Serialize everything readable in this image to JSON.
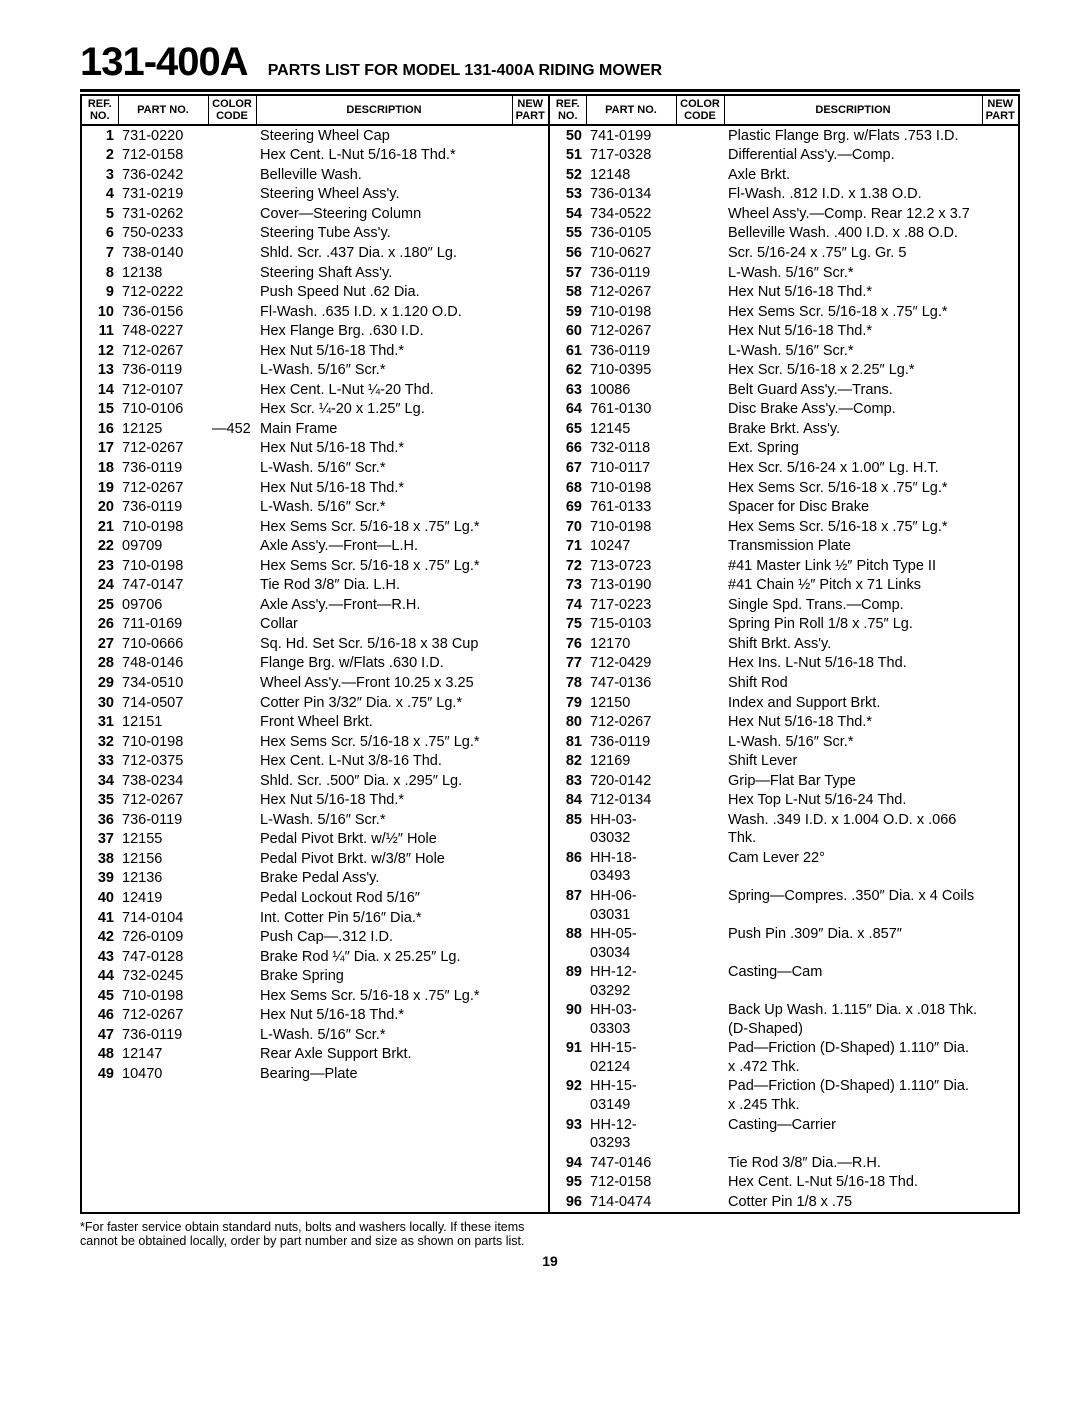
{
  "header": {
    "model": "131-400A",
    "title": "PARTS LIST FOR MODEL 131-400A RIDING MOWER"
  },
  "columns": {
    "ref": "REF.\nNO.",
    "part": "PART\nNO.",
    "color": "COLOR\nCODE",
    "desc": "DESCRIPTION",
    "new": "NEW\nPART"
  },
  "footnote": "*For faster service obtain standard nuts, bolts and washers locally. If these items cannot be obtained locally, order by part number and size as shown on parts list.",
  "pageNumber": "19",
  "left": [
    {
      "ref": "1",
      "part": "731-0220",
      "color": "",
      "desc": "Steering Wheel Cap"
    },
    {
      "ref": "2",
      "part": "712-0158",
      "color": "",
      "desc": "Hex Cent. L-Nut 5/16-18 Thd.*"
    },
    {
      "ref": "3",
      "part": "736-0242",
      "color": "",
      "desc": "Belleville Wash."
    },
    {
      "ref": "4",
      "part": "731-0219",
      "color": "",
      "desc": "Steering Wheel Ass'y."
    },
    {
      "ref": "5",
      "part": "731-0262",
      "color": "",
      "desc": "Cover—Steering Column"
    },
    {
      "ref": "6",
      "part": "750-0233",
      "color": "",
      "desc": "Steering Tube Ass'y."
    },
    {
      "ref": "7",
      "part": "738-0140",
      "color": "",
      "desc": "Shld. Scr. .437 Dia. x .180″ Lg."
    },
    {
      "ref": "8",
      "part": "12138",
      "color": "",
      "desc": "Steering Shaft Ass'y."
    },
    {
      "ref": "9",
      "part": "712-0222",
      "color": "",
      "desc": "Push Speed Nut .62 Dia."
    },
    {
      "ref": "10",
      "part": "736-0156",
      "color": "",
      "desc": "Fl-Wash. .635 I.D. x 1.120 O.D."
    },
    {
      "ref": "11",
      "part": "748-0227",
      "color": "",
      "desc": "Hex Flange Brg. .630 I.D."
    },
    {
      "ref": "12",
      "part": "712-0267",
      "color": "",
      "desc": "Hex Nut 5/16-18 Thd.*"
    },
    {
      "ref": "13",
      "part": "736-0119",
      "color": "",
      "desc": "L-Wash. 5/16″ Scr.*"
    },
    {
      "ref": "14",
      "part": "712-0107",
      "color": "",
      "desc": "Hex Cent. L-Nut ¼-20 Thd."
    },
    {
      "ref": "15",
      "part": "710-0106",
      "color": "",
      "desc": "Hex Scr. ¼-20 x 1.25″ Lg."
    },
    {
      "ref": "16",
      "part": "12125",
      "color": "—452",
      "desc": "Main Frame"
    },
    {
      "ref": "17",
      "part": "712-0267",
      "color": "",
      "desc": "Hex Nut 5/16-18 Thd.*"
    },
    {
      "ref": "18",
      "part": "736-0119",
      "color": "",
      "desc": "L-Wash. 5/16″ Scr.*"
    },
    {
      "ref": "19",
      "part": "712-0267",
      "color": "",
      "desc": "Hex Nut 5/16-18 Thd.*"
    },
    {
      "ref": "20",
      "part": "736-0119",
      "color": "",
      "desc": "L-Wash. 5/16″ Scr.*"
    },
    {
      "ref": "21",
      "part": "710-0198",
      "color": "",
      "desc": "Hex Sems Scr. 5/16-18 x .75″ Lg.*"
    },
    {
      "ref": "22",
      "part": "09709",
      "color": "",
      "desc": "Axle Ass'y.—Front—L.H."
    },
    {
      "ref": "23",
      "part": "710-0198",
      "color": "",
      "desc": "Hex Sems Scr. 5/16-18 x .75″ Lg.*"
    },
    {
      "ref": "24",
      "part": "747-0147",
      "color": "",
      "desc": "Tie Rod 3/8″ Dia. L.H."
    },
    {
      "ref": "25",
      "part": "09706",
      "color": "",
      "desc": "Axle Ass'y.—Front—R.H."
    },
    {
      "ref": "26",
      "part": "711-0169",
      "color": "",
      "desc": "Collar"
    },
    {
      "ref": "27",
      "part": "710-0666",
      "color": "",
      "desc": "Sq. Hd. Set Scr. 5/16-18 x 38 Cup"
    },
    {
      "ref": "28",
      "part": "748-0146",
      "color": "",
      "desc": "Flange Brg. w/Flats .630 I.D."
    },
    {
      "ref": "29",
      "part": "734-0510",
      "color": "",
      "desc": "Wheel Ass'y.—Front 10.25 x 3.25"
    },
    {
      "ref": "30",
      "part": "714-0507",
      "color": "",
      "desc": "Cotter Pin 3/32″ Dia. x .75″ Lg.*"
    },
    {
      "ref": "31",
      "part": "12151",
      "color": "",
      "desc": "Front Wheel Brkt."
    },
    {
      "ref": "32",
      "part": "710-0198",
      "color": "",
      "desc": "Hex Sems Scr. 5/16-18 x .75″ Lg.*"
    },
    {
      "ref": "33",
      "part": "712-0375",
      "color": "",
      "desc": "Hex Cent. L-Nut 3/8-16 Thd."
    },
    {
      "ref": "34",
      "part": "738-0234",
      "color": "",
      "desc": "Shld. Scr. .500″ Dia. x .295″ Lg."
    },
    {
      "ref": "35",
      "part": "712-0267",
      "color": "",
      "desc": "Hex Nut 5/16-18 Thd.*"
    },
    {
      "ref": "36",
      "part": "736-0119",
      "color": "",
      "desc": "L-Wash. 5/16″ Scr.*"
    },
    {
      "ref": "37",
      "part": "12155",
      "color": "",
      "desc": "Pedal Pivot Brkt. w/½″ Hole"
    },
    {
      "ref": "38",
      "part": "12156",
      "color": "",
      "desc": "Pedal Pivot Brkt. w/3/8″ Hole"
    },
    {
      "ref": "39",
      "part": "12136",
      "color": "",
      "desc": "Brake Pedal Ass'y."
    },
    {
      "ref": "40",
      "part": "12419",
      "color": "",
      "desc": "Pedal Lockout Rod 5/16″"
    },
    {
      "ref": "41",
      "part": "714-0104",
      "color": "",
      "desc": "Int. Cotter Pin 5/16″ Dia.*"
    },
    {
      "ref": "42",
      "part": "726-0109",
      "color": "",
      "desc": "Push Cap—.312 I.D."
    },
    {
      "ref": "43",
      "part": "747-0128",
      "color": "",
      "desc": "Brake Rod ¼″ Dia. x 25.25″ Lg."
    },
    {
      "ref": "44",
      "part": "732-0245",
      "color": "",
      "desc": "Brake Spring"
    },
    {
      "ref": "45",
      "part": "710-0198",
      "color": "",
      "desc": "Hex Sems Scr. 5/16-18 x .75″ Lg.*"
    },
    {
      "ref": "46",
      "part": "712-0267",
      "color": "",
      "desc": "Hex Nut 5/16-18 Thd.*"
    },
    {
      "ref": "47",
      "part": "736-0119",
      "color": "",
      "desc": "L-Wash. 5/16″ Scr.*"
    },
    {
      "ref": "48",
      "part": "12147",
      "color": "",
      "desc": "Rear Axle Support Brkt."
    },
    {
      "ref": "49",
      "part": "10470",
      "color": "",
      "desc": "Bearing—Plate"
    }
  ],
  "right": [
    {
      "ref": "50",
      "part": "741-0199",
      "color": "",
      "desc": "Plastic Flange Brg. w/Flats .753 I.D."
    },
    {
      "ref": "51",
      "part": "717-0328",
      "color": "",
      "desc": "Differential Ass'y.—Comp."
    },
    {
      "ref": "52",
      "part": "12148",
      "color": "",
      "desc": "Axle Brkt."
    },
    {
      "ref": "53",
      "part": "736-0134",
      "color": "",
      "desc": "Fl-Wash. .812 I.D. x 1.38 O.D."
    },
    {
      "ref": "54",
      "part": "734-0522",
      "color": "",
      "desc": "Wheel Ass'y.—Comp. Rear 12.2 x 3.7"
    },
    {
      "ref": "55",
      "part": "736-0105",
      "color": "",
      "desc": "Belleville Wash. .400 I.D. x .88 O.D."
    },
    {
      "ref": "56",
      "part": "710-0627",
      "color": "",
      "desc": "Scr. 5/16-24 x .75″ Lg. Gr. 5"
    },
    {
      "ref": "57",
      "part": "736-0119",
      "color": "",
      "desc": "L-Wash. 5/16″ Scr.*"
    },
    {
      "ref": "58",
      "part": "712-0267",
      "color": "",
      "desc": "Hex Nut 5/16-18 Thd.*"
    },
    {
      "ref": "59",
      "part": "710-0198",
      "color": "",
      "desc": "Hex Sems Scr. 5/16-18 x .75″ Lg.*"
    },
    {
      "ref": "60",
      "part": "712-0267",
      "color": "",
      "desc": "Hex Nut 5/16-18 Thd.*"
    },
    {
      "ref": "61",
      "part": "736-0119",
      "color": "",
      "desc": "L-Wash. 5/16″ Scr.*"
    },
    {
      "ref": "62",
      "part": "710-0395",
      "color": "",
      "desc": "Hex Scr. 5/16-18 x 2.25″ Lg.*"
    },
    {
      "ref": "63",
      "part": "10086",
      "color": "",
      "desc": "Belt Guard Ass'y.—Trans."
    },
    {
      "ref": "64",
      "part": "761-0130",
      "color": "",
      "desc": "Disc Brake Ass'y.—Comp."
    },
    {
      "ref": "65",
      "part": "12145",
      "color": "",
      "desc": "Brake Brkt. Ass'y."
    },
    {
      "ref": "66",
      "part": "732-0118",
      "color": "",
      "desc": "Ext. Spring"
    },
    {
      "ref": "67",
      "part": "710-0117",
      "color": "",
      "desc": "Hex Scr. 5/16-24 x 1.00″ Lg. H.T."
    },
    {
      "ref": "68",
      "part": "710-0198",
      "color": "",
      "desc": "Hex Sems Scr. 5/16-18 x .75″ Lg.*"
    },
    {
      "ref": "69",
      "part": "761-0133",
      "color": "",
      "desc": "Spacer for Disc Brake"
    },
    {
      "ref": "70",
      "part": "710-0198",
      "color": "",
      "desc": "Hex Sems Scr. 5/16-18 x .75″ Lg.*"
    },
    {
      "ref": "71",
      "part": "10247",
      "color": "",
      "desc": "Transmission Plate"
    },
    {
      "ref": "72",
      "part": "713-0723",
      "color": "",
      "desc": "#41 Master Link ½″ Pitch Type II"
    },
    {
      "ref": "73",
      "part": "713-0190",
      "color": "",
      "desc": "#41 Chain ½″ Pitch x 71 Links"
    },
    {
      "ref": "74",
      "part": "717-0223",
      "color": "",
      "desc": "Single Spd. Trans.—Comp."
    },
    {
      "ref": "75",
      "part": "715-0103",
      "color": "",
      "desc": "Spring Pin Roll 1/8 x .75″ Lg."
    },
    {
      "ref": "76",
      "part": "12170",
      "color": "",
      "desc": "Shift Brkt. Ass'y."
    },
    {
      "ref": "77",
      "part": "712-0429",
      "color": "",
      "desc": "Hex Ins. L-Nut 5/16-18 Thd."
    },
    {
      "ref": "78",
      "part": "747-0136",
      "color": "",
      "desc": "Shift Rod"
    },
    {
      "ref": "79",
      "part": "12150",
      "color": "",
      "desc": "Index and Support Brkt."
    },
    {
      "ref": "80",
      "part": "712-0267",
      "color": "",
      "desc": "Hex Nut 5/16-18 Thd.*"
    },
    {
      "ref": "81",
      "part": "736-0119",
      "color": "",
      "desc": "L-Wash. 5/16″ Scr.*"
    },
    {
      "ref": "82",
      "part": "12169",
      "color": "",
      "desc": "Shift Lever"
    },
    {
      "ref": "83",
      "part": "720-0142",
      "color": "",
      "desc": "Grip—Flat Bar Type"
    },
    {
      "ref": "84",
      "part": "712-0134",
      "color": "",
      "desc": "Hex Top L-Nut 5/16-24 Thd."
    },
    {
      "ref": "85",
      "part": "HH-03-03032",
      "color": "",
      "desc": "Wash. .349 I.D. x 1.004 O.D. x .066 Thk."
    },
    {
      "ref": "86",
      "part": "HH-18-03493",
      "color": "",
      "desc": "Cam Lever 22°"
    },
    {
      "ref": "87",
      "part": "HH-06-03031",
      "color": "",
      "desc": "Spring—Compres. .350″ Dia. x 4 Coils"
    },
    {
      "ref": "88",
      "part": "HH-05-03034",
      "color": "",
      "desc": "Push Pin .309″ Dia. x .857″"
    },
    {
      "ref": "89",
      "part": "HH-12-03292",
      "color": "",
      "desc": "Casting—Cam"
    },
    {
      "ref": "90",
      "part": "HH-03-03303",
      "color": "",
      "desc": "Back Up Wash. 1.115″ Dia. x .018 Thk. (D-Shaped)"
    },
    {
      "ref": "91",
      "part": "HH-15-02124",
      "color": "",
      "desc": "Pad—Friction (D-Shaped) 1.110″ Dia. x .472 Thk."
    },
    {
      "ref": "92",
      "part": "HH-15-03149",
      "color": "",
      "desc": "Pad—Friction (D-Shaped) 1.110″ Dia. x .245 Thk."
    },
    {
      "ref": "93",
      "part": "HH-12-03293",
      "color": "",
      "desc": "Casting—Carrier"
    },
    {
      "ref": "94",
      "part": "747-0146",
      "color": "",
      "desc": "Tie Rod 3/8″ Dia.—R.H."
    },
    {
      "ref": "95",
      "part": "712-0158",
      "color": "",
      "desc": "Hex Cent. L-Nut 5/16-18 Thd."
    },
    {
      "ref": "96",
      "part": "714-0474",
      "color": "",
      "desc": "Cotter Pin 1/8 x .75"
    }
  ]
}
